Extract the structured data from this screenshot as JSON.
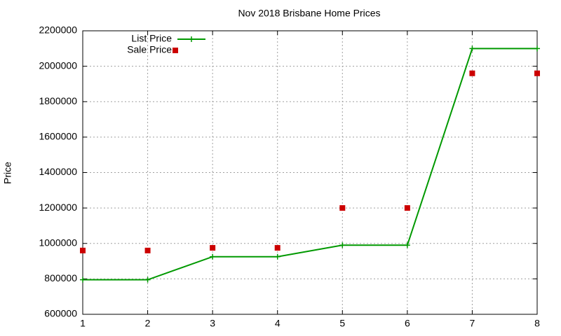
{
  "chart_data": {
    "type": "line",
    "title": "Nov 2018 Brisbane Home Prices",
    "y_label": "Price",
    "x": [
      1,
      2,
      3,
      4,
      5,
      6,
      7,
      8
    ],
    "series": [
      {
        "name": "List Price",
        "color": "#009900",
        "style": "linespoints",
        "values": [
          795000,
          795000,
          925000,
          925000,
          990000,
          990000,
          2100000,
          2100000
        ]
      },
      {
        "name": "Sale Price",
        "color": "#cc0000",
        "style": "points",
        "values": [
          960000,
          960000,
          975000,
          975000,
          1200000,
          1200000,
          1960000,
          1960000
        ]
      }
    ],
    "xlim": [
      1,
      8
    ],
    "xticks": [
      1,
      2,
      3,
      4,
      5,
      6,
      7,
      8
    ],
    "ylim": [
      600000,
      2200000
    ],
    "yticks": [
      600000,
      800000,
      1000000,
      1200000,
      1400000,
      1600000,
      1800000,
      2000000,
      2200000
    ],
    "grid": true,
    "legend": "top-left"
  }
}
